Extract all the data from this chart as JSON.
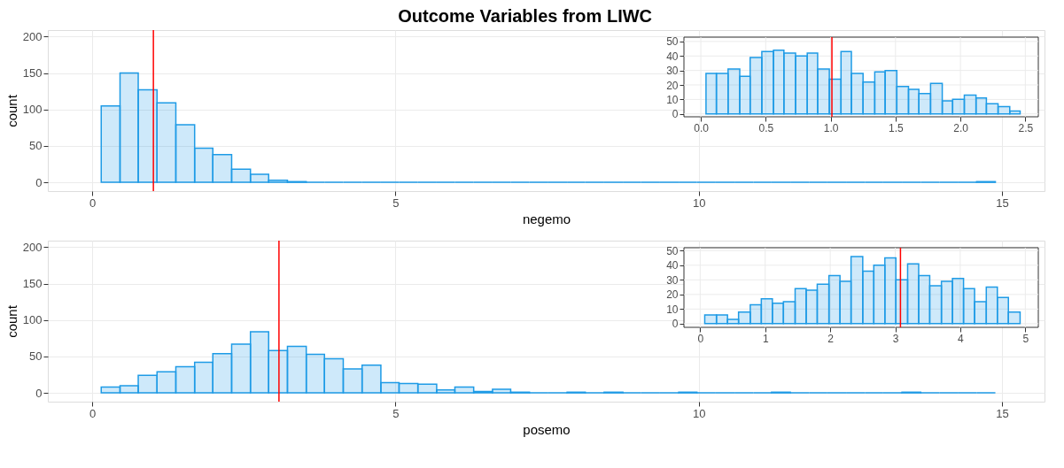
{
  "chart_data": [
    {
      "type": "histogram",
      "title": "Outcome Variables from LIWC",
      "xlabel": "negemo",
      "ylabel": "count",
      "color": "#1e9be6",
      "bins": [
        0.15,
        0.46,
        0.76,
        1.07,
        1.38,
        1.69,
        1.99,
        2.3,
        2.61,
        2.91,
        3.22,
        3.53,
        3.83,
        4.14,
        4.45,
        4.76,
        5.06,
        5.37,
        5.68,
        5.98,
        6.29,
        6.6,
        6.9,
        7.21,
        7.52,
        7.83,
        8.13,
        8.44,
        8.75,
        9.05,
        9.36,
        9.67,
        9.97,
        10.28,
        10.59,
        10.9,
        11.2,
        11.51,
        11.82,
        12.12,
        12.43,
        12.74,
        13.04,
        13.35,
        13.66,
        13.97,
        14.27,
        14.58,
        14.89
      ],
      "values": [
        105,
        150,
        127,
        109,
        79,
        47,
        38,
        18,
        11,
        3,
        1,
        0,
        0,
        0,
        0,
        0,
        0,
        0,
        0,
        0,
        0,
        0,
        0,
        0,
        0,
        0,
        0,
        0,
        0,
        0,
        0,
        0,
        0,
        0,
        0,
        0,
        0,
        0,
        0,
        0,
        0,
        0,
        0,
        0,
        0,
        0,
        0,
        1
      ],
      "xlim": [
        -0.73,
        15.7
      ],
      "xticks": [
        0,
        5,
        10,
        15
      ],
      "ylim": [
        -12,
        209
      ],
      "yticks": [
        0,
        50,
        100,
        150,
        200
      ],
      "grid": true,
      "ref_lines": [
        {
          "axis": "x",
          "value": 1.01,
          "color": "#ff0000"
        }
      ]
    },
    {
      "type": "histogram",
      "color": "#1e9be6",
      "bins": [
        0.04,
        0.12,
        0.21,
        0.3,
        0.38,
        0.47,
        0.56,
        0.64,
        0.73,
        0.82,
        0.9,
        0.99,
        1.08,
        1.16,
        1.25,
        1.34,
        1.42,
        1.51,
        1.6,
        1.68,
        1.77,
        1.86,
        1.94,
        2.03,
        2.12,
        2.2,
        2.29,
        2.38,
        2.46
      ],
      "values": [
        28,
        28,
        31,
        26,
        39,
        43,
        44,
        42,
        40,
        42,
        31,
        24,
        43,
        28,
        22,
        29,
        30,
        19,
        17,
        14,
        21,
        9,
        10,
        13,
        11,
        7,
        5,
        2
      ],
      "xlim": [
        -0.13,
        2.6
      ],
      "xticks": [
        {
          "value": 0,
          "label": "0.0"
        },
        {
          "value": 0.5,
          "label": "0.5"
        },
        {
          "value": 1,
          "label": "1.0"
        },
        {
          "value": 1.5,
          "label": "1.5"
        },
        {
          "value": 2,
          "label": "2.0"
        },
        {
          "value": 2.5,
          "label": "2.5"
        }
      ],
      "ylim": [
        -2,
        53
      ],
      "yticks": [
        0,
        10,
        20,
        30,
        40,
        50
      ],
      "grid": true,
      "ref_lines": [
        {
          "axis": "x",
          "value": 1.01,
          "color": "#ff0000"
        }
      ]
    },
    {
      "type": "histogram",
      "xlabel": "posemo",
      "ylabel": "count",
      "color": "#1e9be6",
      "bins": [
        0.15,
        0.46,
        0.76,
        1.07,
        1.38,
        1.69,
        1.99,
        2.3,
        2.61,
        2.91,
        3.22,
        3.53,
        3.83,
        4.14,
        4.45,
        4.76,
        5.06,
        5.37,
        5.68,
        5.98,
        6.29,
        6.6,
        6.9,
        7.21,
        7.52,
        7.83,
        8.13,
        8.44,
        8.75,
        9.05,
        9.36,
        9.67,
        9.97,
        10.28,
        10.59,
        10.9,
        11.2,
        11.51,
        11.82,
        12.12,
        12.43,
        12.74,
        13.04,
        13.35,
        13.66,
        13.97,
        14.27,
        14.58,
        14.89
      ],
      "values": [
        8,
        10,
        24,
        29,
        36,
        42,
        54,
        67,
        84,
        58,
        64,
        53,
        47,
        33,
        38,
        14,
        13,
        12,
        4,
        8,
        2,
        5,
        1,
        0,
        0,
        1,
        0,
        1,
        0,
        0,
        0,
        1,
        0,
        0,
        0,
        0,
        1,
        0,
        0,
        0,
        0,
        0,
        0,
        1,
        0,
        0,
        0,
        0
      ],
      "xlim": [
        -0.73,
        15.7
      ],
      "xticks": [
        0,
        5,
        10,
        15
      ],
      "ylim": [
        -12,
        209
      ],
      "yticks": [
        0,
        50,
        100,
        150,
        200
      ],
      "grid": true,
      "ref_lines": [
        {
          "axis": "x",
          "value": 3.08,
          "color": "#ff0000"
        }
      ]
    },
    {
      "type": "histogram",
      "color": "#1e9be6",
      "bins": [
        0.07,
        0.25,
        0.42,
        0.59,
        0.77,
        0.94,
        1.11,
        1.28,
        1.46,
        1.63,
        1.8,
        1.98,
        2.15,
        2.32,
        2.5,
        2.67,
        2.84,
        3.01,
        3.19,
        3.36,
        3.53,
        3.71,
        3.88,
        4.05,
        4.22,
        4.4,
        4.57,
        4.74,
        4.92
      ],
      "values": [
        6,
        6,
        3,
        8,
        13,
        17,
        14,
        15,
        24,
        23,
        27,
        33,
        29,
        46,
        36,
        40,
        45,
        30,
        41,
        33,
        26,
        29,
        31,
        24,
        15,
        25,
        18,
        8
      ],
      "xlim": [
        -0.25,
        5.2
      ],
      "xticks": [
        0,
        1,
        2,
        3,
        4,
        5
      ],
      "ylim": [
        -2.5,
        52
      ],
      "yticks": [
        0,
        10,
        20,
        30,
        40,
        50
      ],
      "grid": true,
      "ref_lines": [
        {
          "axis": "x",
          "value": 3.08,
          "color": "#ff0000"
        }
      ]
    }
  ]
}
